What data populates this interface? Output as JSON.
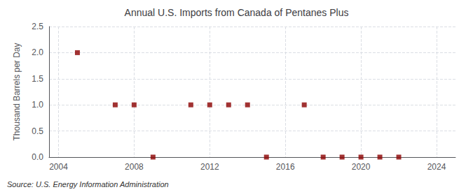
{
  "chart_data": {
    "type": "scatter",
    "title": "Annual U.S. Imports from Canada of Pentanes Plus",
    "ylabel": "Thousand Barrels per Day",
    "source": "Source: U.S. Energy Information Administration",
    "x": [
      2005,
      2007,
      2008,
      2009,
      2011,
      2012,
      2013,
      2014,
      2015,
      2017,
      2018,
      2019,
      2020,
      2021,
      2022
    ],
    "values": [
      2.0,
      1.0,
      1.0,
      0.0,
      1.0,
      1.0,
      1.0,
      1.0,
      0.0,
      1.0,
      0.0,
      0.0,
      0.0,
      0.0,
      0.0
    ],
    "color": "#8b0000",
    "marker": "square",
    "xlim": [
      2003.5,
      2025
    ],
    "xticks": [
      2004,
      2008,
      2012,
      2016,
      2020,
      2024
    ],
    "ylim": [
      0.0,
      2.5
    ],
    "yticks": [
      {
        "value": 0.0,
        "label": "0.0"
      },
      0.5,
      {
        "value": 1.0,
        "label": "1.0"
      },
      1.5,
      {
        "value": 2.0,
        "label": "2.0"
      },
      2.5
    ],
    "grid": true
  }
}
